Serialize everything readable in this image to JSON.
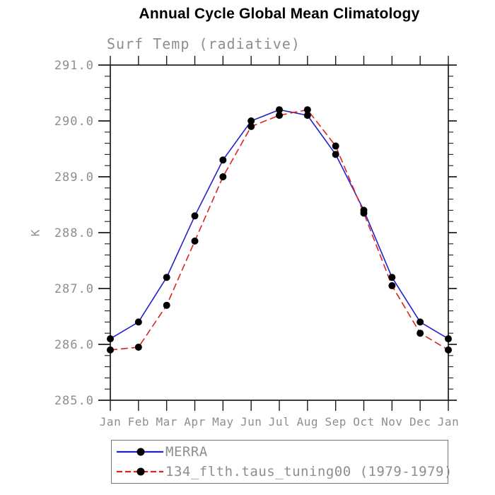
{
  "title": "Annual Cycle Global Mean Climatology",
  "subtitle": "Surf Temp (radiative)",
  "ylabel": "K",
  "chart_data": {
    "type": "line",
    "x_categories": [
      "Jan",
      "Feb",
      "Mar",
      "Apr",
      "May",
      "Jun",
      "Jul",
      "Aug",
      "Sep",
      "Oct",
      "Nov",
      "Dec",
      "Jan"
    ],
    "ylim": [
      285.0,
      291.0
    ],
    "ytick_interval": 1.0,
    "ytick_minor_interval": 0.2,
    "ytick_labels": [
      "285.0",
      "286.0",
      "287.0",
      "288.0",
      "289.0",
      "290.0",
      "291.0"
    ],
    "grid": false,
    "legend_position": "bottom",
    "series": [
      {
        "name": "MERRA",
        "color": "#2222cc",
        "line_style": "solid",
        "marker": "filled-circle",
        "marker_color": "#000000",
        "values": [
          286.1,
          286.4,
          287.2,
          288.3,
          289.3,
          290.0,
          290.2,
          290.1,
          289.4,
          288.4,
          287.2,
          286.4,
          286.1
        ]
      },
      {
        "name": "134_flth.taus_tuning00 (1979-1979)",
        "color": "#dd2222",
        "line_style": "dashed",
        "marker": "filled-circle",
        "marker_color": "#000000",
        "values": [
          285.9,
          285.95,
          286.7,
          287.85,
          289.0,
          289.9,
          290.1,
          290.2,
          289.55,
          288.35,
          287.05,
          286.2,
          285.9
        ]
      }
    ]
  },
  "colors": {
    "title_text": "#000000",
    "axis_text": "#8e8e8e",
    "frame": "#1a1a1a",
    "merra_line": "#2222cc",
    "tuning_line": "#dd2222",
    "marker": "#000000",
    "legend_border": "#787878"
  }
}
